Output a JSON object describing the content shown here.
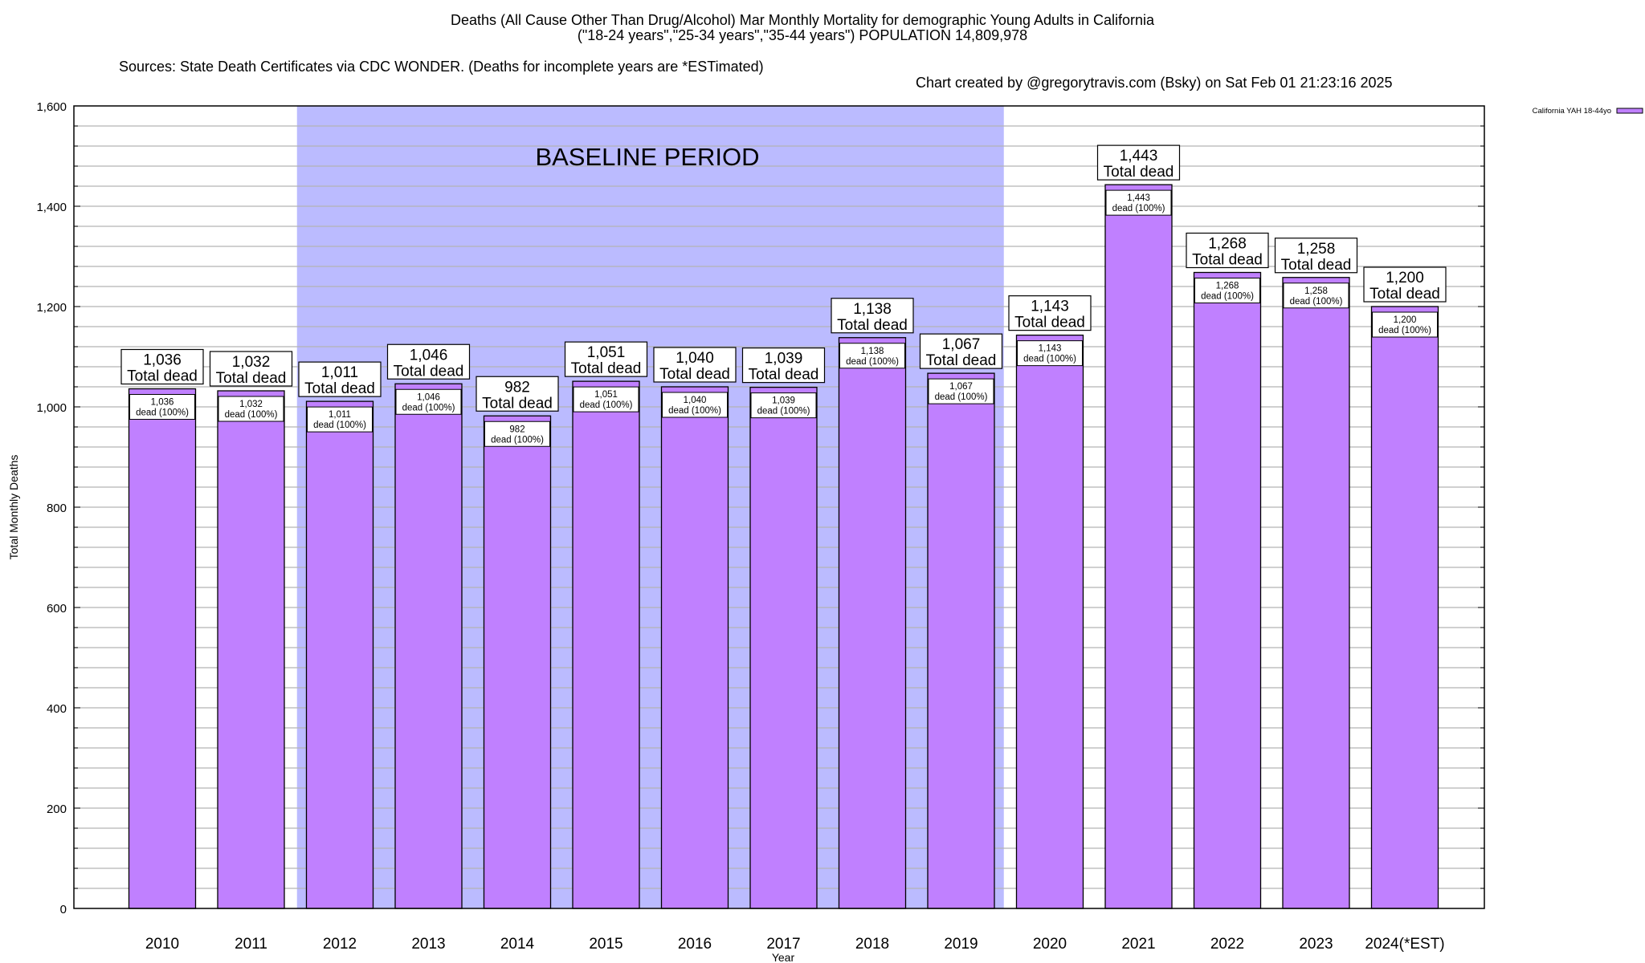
{
  "chart_data": {
    "type": "bar",
    "title": "Deaths (All Cause Other Than Drug/Alcohol) Mar Monthly Mortality for demographic Young Adults in California",
    "subtitle": "(\"18-24 years\",\"25-34 years\",\"35-44 years\") POPULATION 14,809,978",
    "source": "Sources: State Death Certificates via CDC WONDER. (Deaths for incomplete years are *ESTimated)",
    "credit": "Chart created by @gregorytravis.com (Bsky) on Sat Feb 01 21:23:16 2025",
    "xlabel": "Year",
    "ylabel": "Total Monthly Deaths",
    "ylim": [
      0,
      1600
    ],
    "yticks": [
      0,
      200,
      400,
      600,
      800,
      1000,
      1200,
      1400,
      1600
    ],
    "ytick_labels": [
      "0",
      "200",
      "400",
      "600",
      "800",
      "1,000",
      "1,200",
      "1,400",
      "1,600"
    ],
    "minor_grid_step": 40,
    "grid": true,
    "categories": [
      "2010",
      "2011",
      "2012",
      "2013",
      "2014",
      "2015",
      "2016",
      "2017",
      "2018",
      "2019",
      "2020",
      "2021",
      "2022",
      "2023",
      "2024(*EST)"
    ],
    "series": [
      {
        "name": "California YAH 18-44yo",
        "color": "#c080ff",
        "values": [
          1036,
          1032,
          1011,
          1046,
          982,
          1051,
          1040,
          1039,
          1138,
          1067,
          1143,
          1443,
          1268,
          1258,
          1200
        ],
        "value_labels": [
          "1,036",
          "1,032",
          "1,011",
          "1,046",
          "982",
          "1,051",
          "1,040",
          "1,039",
          "1,138",
          "1,067",
          "1,143",
          "1,443",
          "1,268",
          "1,258",
          "1,200"
        ]
      }
    ],
    "total_label_suffix": "Total dead",
    "inner_label_suffix": "dead (100%)",
    "legend": {
      "position": "top-right",
      "entries": [
        "California YAH 18-44yo"
      ]
    },
    "annotations": [
      {
        "type": "shaded-region",
        "label": "BASELINE PERIOD",
        "from_category": "2012",
        "to_category": "2019",
        "color": "#bbbbff"
      }
    ]
  }
}
